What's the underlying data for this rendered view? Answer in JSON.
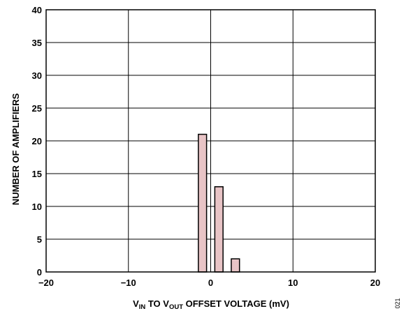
{
  "chart_data": {
    "type": "bar",
    "xlabel": {
      "base1": "V",
      "sub1": "IN",
      "mid": " TO V",
      "sub2": "OUT",
      "rest": " OFFSET VOLTAGE (mV)"
    },
    "ylabel": "NUMBER OF AMPLIFIERS",
    "xlim": [
      -20,
      20
    ],
    "ylim": [
      0,
      40
    ],
    "x_ticks": [
      -20,
      -10,
      0,
      10,
      20
    ],
    "x_tick_labels": [
      "−20",
      "−10",
      "0",
      "10",
      "20"
    ],
    "y_ticks": [
      0,
      5,
      10,
      15,
      20,
      25,
      30,
      35,
      40
    ],
    "y_tick_labels": [
      "0",
      "5",
      "10",
      "15",
      "20",
      "25",
      "30",
      "35",
      "40"
    ],
    "bin_width": 1,
    "bars": [
      {
        "x": -1,
        "value": 21
      },
      {
        "x": 1,
        "value": 13
      },
      {
        "x": 3,
        "value": 2
      }
    ],
    "bar_color": "#e8c4c6",
    "grid": true,
    "figure_code": "021"
  }
}
